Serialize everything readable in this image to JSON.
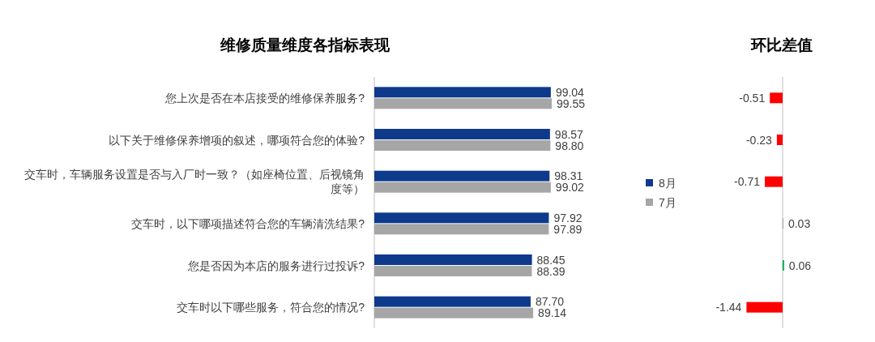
{
  "chart_data": [
    {
      "type": "bar",
      "orientation": "horizontal",
      "title": "维修质量维度各指标表现",
      "categories": [
        "您上次是否在本店接受的维修保养服务?",
        "以下关于维修保养增项的叙述，哪项符合您的体验?",
        "交车时，车辆服务设置是否与入厂时一致？（如座椅位置、后视镜角度等）",
        "交车时，以下哪项描述符合您的车辆清洗结果?",
        "您是否因为本店的服务进行过投诉?",
        "交车时以下哪些服务，符合您的情况?"
      ],
      "series": [
        {
          "name": "8月",
          "color": "#0e3a8c",
          "values": [
            99.04,
            98.57,
            98.31,
            97.92,
            88.45,
            87.7
          ],
          "value_labels": [
            "99.04",
            "98.57",
            "98.31",
            "97.92",
            "88.45",
            "87.70"
          ]
        },
        {
          "name": "7月",
          "color": "#a6a6a6",
          "values": [
            99.55,
            98.8,
            99.02,
            97.89,
            88.39,
            89.14
          ],
          "value_labels": [
            "99.55",
            "98.80",
            "99.02",
            "97.89",
            "88.39",
            "89.14"
          ]
        }
      ],
      "legend": "right",
      "tick_labels": "y"
    },
    {
      "type": "bar",
      "orientation": "horizontal",
      "title": "环比差值",
      "categories": [
        null,
        null,
        null,
        null,
        null,
        null
      ],
      "values": [
        -0.51,
        -0.23,
        -0.71,
        0.03,
        0.06,
        -1.44
      ],
      "colors": [
        "#ff0000",
        "#ff0000",
        "#ff0000",
        "#a6a6a6",
        "#00b050",
        "#ff0000"
      ],
      "data_labels": true,
      "tick_labels": false
    }
  ]
}
